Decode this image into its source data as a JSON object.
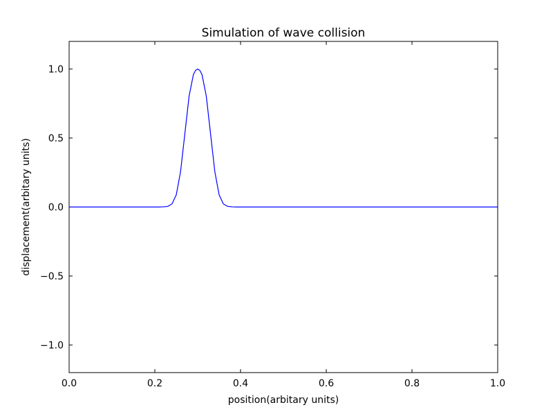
{
  "chart_data": {
    "type": "line",
    "title": "Simulation of wave collision",
    "xlabel": "position(arbitary units)",
    "ylabel": "displacement(arbitary units)",
    "xlim": [
      0.0,
      1.0
    ],
    "ylim": [
      -1.2,
      1.2
    ],
    "grid": false,
    "legend": "none",
    "x_ticks": [
      0.0,
      0.2,
      0.4,
      0.6,
      0.8,
      1.0
    ],
    "x_tick_labels": [
      "0.0",
      "0.2",
      "0.4",
      "0.6",
      "0.8",
      "1.0"
    ],
    "y_ticks": [
      -1.0,
      -0.5,
      0.0,
      0.5,
      1.0
    ],
    "y_tick_labels": [
      "−1.0",
      "−0.5",
      "0.0",
      "0.5",
      "1.0"
    ],
    "series": [
      {
        "color": "#0000ff",
        "x": [
          0.0,
          0.1,
          0.2,
          0.21,
          0.22,
          0.23,
          0.24,
          0.25,
          0.26,
          0.27,
          0.28,
          0.29,
          0.295,
          0.3,
          0.305,
          0.31,
          0.32,
          0.33,
          0.34,
          0.35,
          0.36,
          0.37,
          0.38,
          0.39,
          0.4,
          0.5,
          0.6,
          0.7,
          0.8,
          0.9,
          1.0
        ],
        "y": [
          0.0,
          0.0,
          0.0,
          0.0,
          0.001,
          0.004,
          0.022,
          0.088,
          0.256,
          0.53,
          0.805,
          0.96,
          0.99,
          1.0,
          0.99,
          0.96,
          0.805,
          0.53,
          0.256,
          0.088,
          0.022,
          0.004,
          0.001,
          0.0,
          0.0,
          0.0,
          0.0,
          0.0,
          0.0,
          0.0,
          0.0
        ]
      }
    ]
  }
}
